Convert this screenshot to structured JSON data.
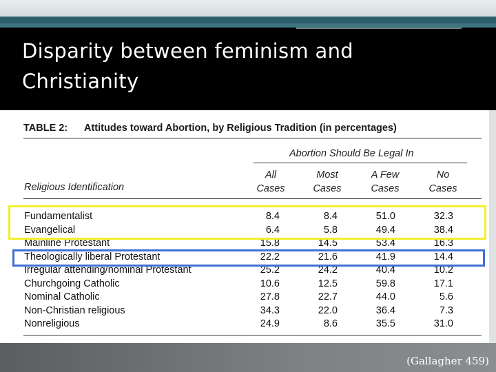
{
  "slide": {
    "title": "Disparity between feminism and\nChristianity",
    "citation": "(Gallagher 459)"
  },
  "table": {
    "label": "TABLE 2:",
    "title": "Attitudes toward Abortion, by Religious Tradition (in percentages)",
    "group_header": "Abortion Should Be Legal In",
    "row_header": "Religious Identification",
    "columns": [
      "All\nCases",
      "Most\nCases",
      "A Few\nCases",
      "No\nCases"
    ],
    "rows": [
      {
        "label": "Fundamentalist",
        "values": [
          "8.4",
          "8.4",
          "51.0",
          "32.3"
        ]
      },
      {
        "label": "Evangelical",
        "values": [
          "6.4",
          "5.8",
          "49.4",
          "38.4"
        ]
      },
      {
        "label": "Mainline Protestant",
        "values": [
          "15.8",
          "14.5",
          "53.4",
          "16.3"
        ]
      },
      {
        "label": "Theologically liberal Protestant",
        "values": [
          "22.2",
          "21.6",
          "41.9",
          "14.4"
        ]
      },
      {
        "label": "Irregular attending/nominal Protestant",
        "values": [
          "25.2",
          "24.2",
          "40.4",
          "10.2"
        ]
      },
      {
        "label": "Churchgoing Catholic",
        "values": [
          "10.6",
          "12.5",
          "59.8",
          "17.1"
        ]
      },
      {
        "label": "Nominal Catholic",
        "values": [
          "27.8",
          "22.7",
          "44.0",
          "5.6"
        ]
      },
      {
        "label": "Non-Christian religious",
        "values": [
          "34.3",
          "22.0",
          "36.4",
          "7.3"
        ]
      },
      {
        "label": "Nonreligious",
        "values": [
          "24.9",
          "8.6",
          "35.5",
          "31.0"
        ]
      }
    ]
  },
  "highlight_colors": {
    "yellow": "#f4ee2c",
    "blue": "#3f6fd0"
  }
}
